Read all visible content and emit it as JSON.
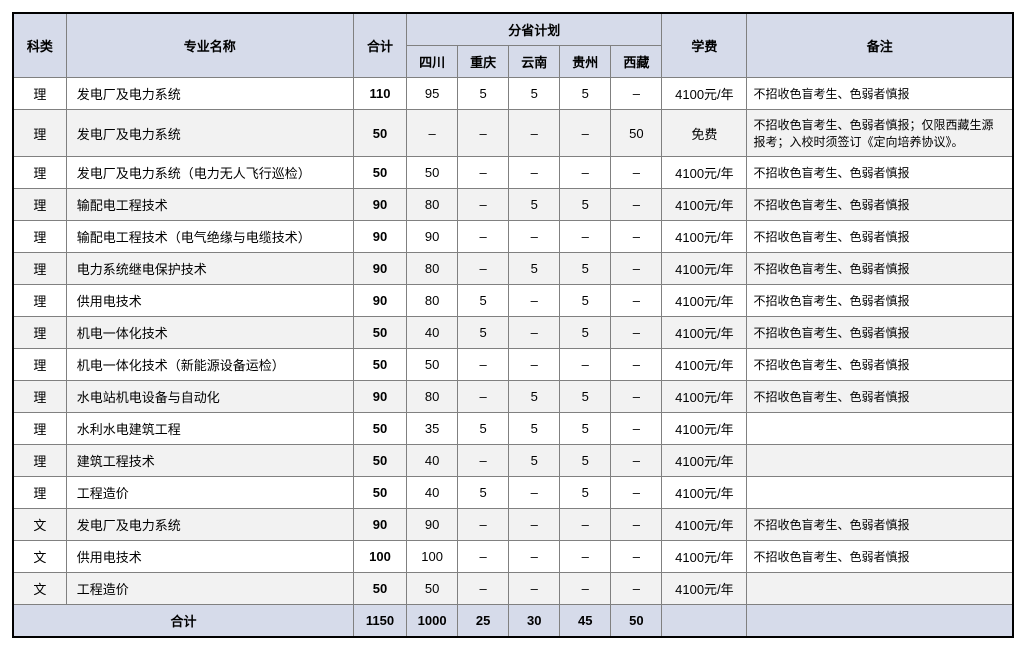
{
  "header": {
    "category": "科类",
    "major": "专业名称",
    "total": "合计",
    "province_plan": "分省计划",
    "provinces": [
      "四川",
      "重庆",
      "云南",
      "贵州",
      "西藏"
    ],
    "fee": "学费",
    "remark": "备注"
  },
  "fee_common": "4100元/年",
  "fee_free": "免费",
  "dash": "–",
  "remark_colorblind": "不招收色盲考生、色弱者慎报",
  "remark_tibet": "不招收色盲考生、色弱者慎报；仅限西藏生源报考；入校时须签订《定向培养协议》。",
  "rows": [
    {
      "cat": "理",
      "major": "发电厂及电力系统",
      "total": "110",
      "p": [
        "95",
        "5",
        "5",
        "5",
        "–"
      ],
      "fee": "4100元/年",
      "remark": "不招收色盲考生、色弱者慎报"
    },
    {
      "cat": "理",
      "major": "发电厂及电力系统",
      "total": "50",
      "p": [
        "–",
        "–",
        "–",
        "–",
        "50"
      ],
      "fee": "免费",
      "remark": "不招收色盲考生、色弱者慎报；仅限西藏生源报考；入校时须签订《定向培养协议》。"
    },
    {
      "cat": "理",
      "major": "发电厂及电力系统（电力无人飞行巡检）",
      "total": "50",
      "p": [
        "50",
        "–",
        "–",
        "–",
        "–"
      ],
      "fee": "4100元/年",
      "remark": "不招收色盲考生、色弱者慎报"
    },
    {
      "cat": "理",
      "major": "输配电工程技术",
      "total": "90",
      "p": [
        "80",
        "–",
        "5",
        "5",
        "–"
      ],
      "fee": "4100元/年",
      "remark": "不招收色盲考生、色弱者慎报"
    },
    {
      "cat": "理",
      "major": "输配电工程技术（电气绝缘与电缆技术）",
      "total": "90",
      "p": [
        "90",
        "–",
        "–",
        "–",
        "–"
      ],
      "fee": "4100元/年",
      "remark": "不招收色盲考生、色弱者慎报"
    },
    {
      "cat": "理",
      "major": "电力系统继电保护技术",
      "total": "90",
      "p": [
        "80",
        "–",
        "5",
        "5",
        "–"
      ],
      "fee": "4100元/年",
      "remark": "不招收色盲考生、色弱者慎报"
    },
    {
      "cat": "理",
      "major": "供用电技术",
      "total": "90",
      "p": [
        "80",
        "5",
        "–",
        "5",
        "–"
      ],
      "fee": "4100元/年",
      "remark": "不招收色盲考生、色弱者慎报"
    },
    {
      "cat": "理",
      "major": "机电一体化技术",
      "total": "50",
      "p": [
        "40",
        "5",
        "–",
        "5",
        "–"
      ],
      "fee": "4100元/年",
      "remark": "不招收色盲考生、色弱者慎报"
    },
    {
      "cat": "理",
      "major": "机电一体化技术（新能源设备运检）",
      "total": "50",
      "p": [
        "50",
        "–",
        "–",
        "–",
        "–"
      ],
      "fee": "4100元/年",
      "remark": "不招收色盲考生、色弱者慎报"
    },
    {
      "cat": "理",
      "major": "水电站机电设备与自动化",
      "total": "90",
      "p": [
        "80",
        "–",
        "5",
        "5",
        "–"
      ],
      "fee": "4100元/年",
      "remark": "不招收色盲考生、色弱者慎报"
    },
    {
      "cat": "理",
      "major": "水利水电建筑工程",
      "total": "50",
      "p": [
        "35",
        "5",
        "5",
        "5",
        "–"
      ],
      "fee": "4100元/年",
      "remark": ""
    },
    {
      "cat": "理",
      "major": "建筑工程技术",
      "total": "50",
      "p": [
        "40",
        "–",
        "5",
        "5",
        "–"
      ],
      "fee": "4100元/年",
      "remark": ""
    },
    {
      "cat": "理",
      "major": "工程造价",
      "total": "50",
      "p": [
        "40",
        "5",
        "–",
        "5",
        "–"
      ],
      "fee": "4100元/年",
      "remark": ""
    },
    {
      "cat": "文",
      "major": "发电厂及电力系统",
      "total": "90",
      "p": [
        "90",
        "–",
        "–",
        "–",
        "–"
      ],
      "fee": "4100元/年",
      "remark": "不招收色盲考生、色弱者慎报"
    },
    {
      "cat": "文",
      "major": "供用电技术",
      "total": "100",
      "p": [
        "100",
        "–",
        "–",
        "–",
        "–"
      ],
      "fee": "4100元/年",
      "remark": "不招收色盲考生、色弱者慎报"
    },
    {
      "cat": "文",
      "major": "工程造价",
      "total": "50",
      "p": [
        "50",
        "–",
        "–",
        "–",
        "–"
      ],
      "fee": "4100元/年",
      "remark": ""
    }
  ],
  "totals": {
    "label": "合计",
    "total": "1150",
    "p": [
      "1000",
      "25",
      "30",
      "45",
      "50"
    ],
    "fee": "",
    "remark": ""
  },
  "style": {
    "header_bg": "#d6dbea",
    "alt_row_bg": "#f2f2f2",
    "border_color": "#808080",
    "outer_border": "#000000",
    "font_size_pt": 13,
    "remark_font_size_pt": 12
  }
}
